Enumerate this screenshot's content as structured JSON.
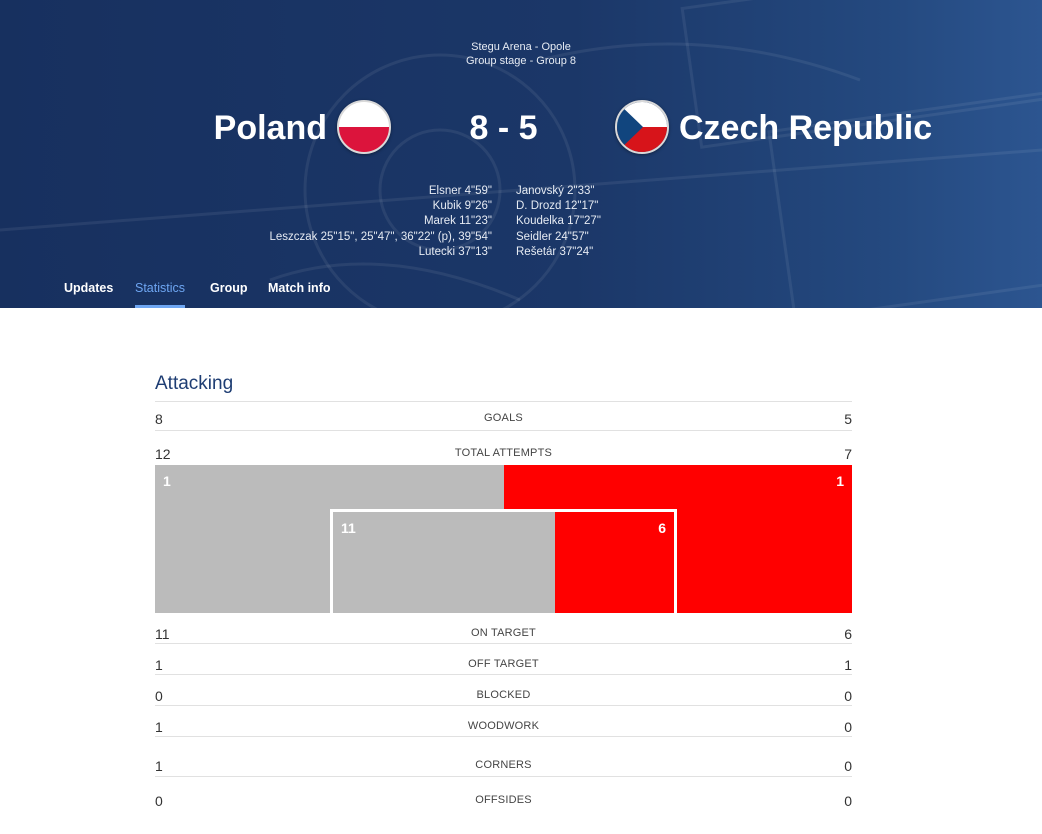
{
  "match": {
    "venue": "Stegu Arena - Opole",
    "stage": "Group stage - Group 8",
    "home_team": "Poland",
    "away_team": "Czech Republic",
    "score": "8 - 5",
    "home_flag": "poland-flag-icon",
    "away_flag": "czech-republic-flag-icon",
    "home_scorers": [
      "Elsner 4\"59\"",
      "Kubik 9\"26\"",
      "Marek 11\"23\"",
      "Leszczak 25\"15\", 25\"47\", 36\"22\" (p), 39\"54\"",
      "Lutecki 37\"13\""
    ],
    "away_scorers": [
      "Janovský 2\"33\"",
      "D. Drozd 12\"17\"",
      "Koudelka 17\"27\"",
      "Seidler 24\"57\"",
      "Rešetár 37\"24\""
    ]
  },
  "tabs": [
    "Updates",
    "Statistics",
    "Group",
    "Match info"
  ],
  "active_tab": "Statistics",
  "colors": {
    "header_dark": "#17305f",
    "header_light": "#2c5590",
    "tab_active": "#6ea6f2",
    "home_bar": "#bbbbbb",
    "away_bar": "#ff0000",
    "section_title": "#1e3d73"
  },
  "stats": {
    "section_title": "Attacking",
    "goals": {
      "label": "GOALS",
      "home": "8",
      "away": "5"
    },
    "total_attempts": {
      "label": "TOTAL ATTEMPTS",
      "home": "12",
      "away": "7"
    },
    "attempts_chart": {
      "outer_home": "1",
      "outer_away": "1",
      "inner_home": "11",
      "inner_away": "6"
    },
    "on_target": {
      "label": "ON TARGET",
      "home": "11",
      "away": "6"
    },
    "off_target": {
      "label": "OFF TARGET",
      "home": "1",
      "away": "1"
    },
    "blocked": {
      "label": "BLOCKED",
      "home": "0",
      "away": "0"
    },
    "woodwork": {
      "label": "WOODWORK",
      "home": "1",
      "away": "0"
    },
    "corners": {
      "label": "CORNERS",
      "home": "1",
      "away": "0"
    },
    "offsides": {
      "label": "OFFSIDES",
      "home": "0",
      "away": "0"
    }
  }
}
